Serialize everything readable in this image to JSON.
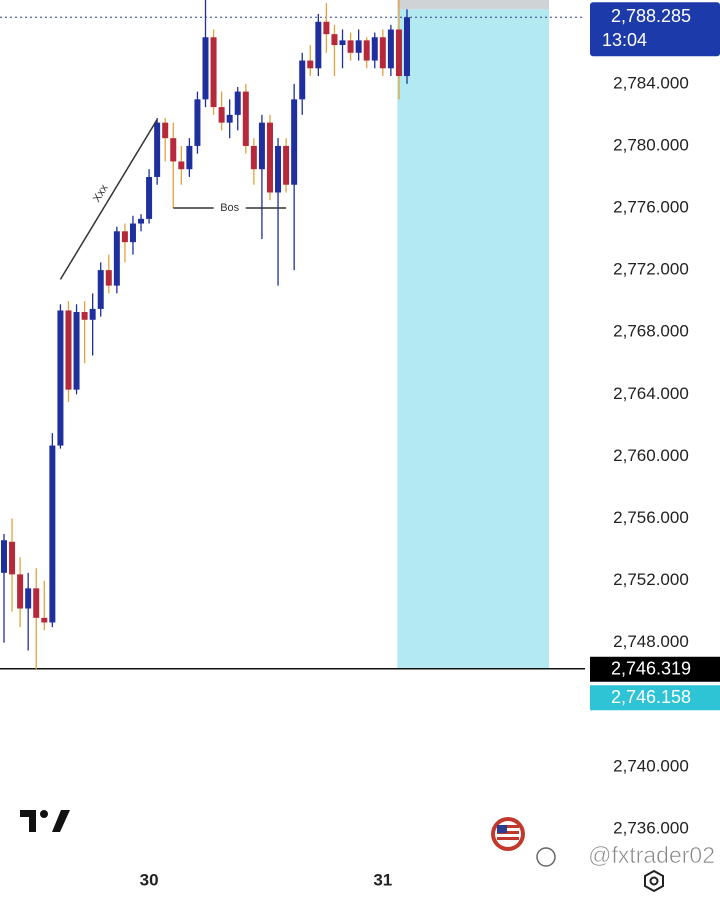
{
  "chart_data": {
    "type": "candlestick",
    "categories": [
      null,
      null,
      null,
      null,
      null,
      null,
      null,
      null,
      null,
      null,
      null,
      null,
      null,
      null,
      null,
      null,
      null,
      null,
      "30",
      null,
      null,
      null,
      null,
      null,
      null,
      null,
      null,
      null,
      null,
      null,
      null,
      null,
      null,
      null,
      null,
      null,
      null,
      null,
      null,
      null,
      null,
      null,
      null,
      null,
      null,
      null,
      null,
      "31",
      null,
      null,
      null
    ],
    "ohlc": [
      [
        2752.5,
        2755.0,
        2748.0,
        2754.6
      ],
      [
        2754.5,
        2756.0,
        2750.0,
        2752.4
      ],
      [
        2752.4,
        2753.5,
        2749.0,
        2750.2
      ],
      [
        2750.2,
        2752.5,
        2747.5,
        2751.5
      ],
      [
        2751.5,
        2752.8,
        2746.3,
        2749.6
      ],
      [
        2749.6,
        2752.0,
        2748.8,
        2749.3
      ],
      [
        2749.3,
        2761.5,
        2749.0,
        2760.7
      ],
      [
        2760.7,
        2769.8,
        2760.5,
        2769.4
      ],
      [
        2769.4,
        2770.0,
        2763.5,
        2764.3
      ],
      [
        2764.3,
        2769.8,
        2764.0,
        2769.3
      ],
      [
        2769.3,
        2770.0,
        2766.0,
        2768.8
      ],
      [
        2768.8,
        2770.5,
        2766.5,
        2769.5
      ],
      [
        2769.5,
        2772.5,
        2769.0,
        2772.0
      ],
      [
        2772.0,
        2773.0,
        2770.5,
        2771.0
      ],
      [
        2771.0,
        2774.8,
        2770.5,
        2774.5
      ],
      [
        2774.5,
        2775.0,
        2772.5,
        2773.8
      ],
      [
        2773.8,
        2775.5,
        2773.0,
        2775.0
      ],
      [
        2775.0,
        2775.6,
        2774.5,
        2775.3
      ],
      [
        2775.3,
        2778.5,
        2775.0,
        2778.0
      ],
      [
        2778.0,
        2781.8,
        2777.5,
        2781.5
      ],
      [
        2781.5,
        2781.8,
        2779.0,
        2780.5
      ],
      [
        2780.5,
        2781.5,
        2776.0,
        2779.0
      ],
      [
        2779.0,
        2780.0,
        2777.5,
        2778.5
      ],
      [
        2778.5,
        2780.5,
        2778.0,
        2780.0
      ],
      [
        2780.0,
        2783.5,
        2779.5,
        2783.0
      ],
      [
        2783.0,
        2789.4,
        2782.5,
        2787.0
      ],
      [
        2787.0,
        2787.5,
        2782.0,
        2782.5
      ],
      [
        2782.5,
        2783.5,
        2781.0,
        2781.5
      ],
      [
        2781.5,
        2783.0,
        2780.5,
        2782.0
      ],
      [
        2782.0,
        2783.8,
        2781.0,
        2783.5
      ],
      [
        2783.5,
        2784.0,
        2779.5,
        2780.0
      ],
      [
        2780.0,
        2780.5,
        2777.5,
        2778.5
      ],
      [
        2778.5,
        2782.0,
        2774.0,
        2781.5
      ],
      [
        2781.5,
        2782.0,
        2776.5,
        2777.0
      ],
      [
        2777.0,
        2780.5,
        2771.0,
        2780.0
      ],
      [
        2780.0,
        2780.5,
        2777.0,
        2777.5
      ],
      [
        2777.5,
        2784.0,
        2772.0,
        2783.0
      ],
      [
        2783.0,
        2786.0,
        2782.0,
        2785.5
      ],
      [
        2785.5,
        2786.5,
        2784.5,
        2785.0
      ],
      [
        2785.0,
        2788.5,
        2784.5,
        2788.0
      ],
      [
        2788.0,
        2789.2,
        2786.0,
        2787.2
      ],
      [
        2787.2,
        2787.8,
        2784.5,
        2786.5
      ],
      [
        2786.5,
        2787.5,
        2785.0,
        2786.8
      ],
      [
        2786.8,
        2787.3,
        2785.5,
        2786.0
      ],
      [
        2786.0,
        2787.5,
        2785.5,
        2786.8
      ],
      [
        2786.8,
        2787.0,
        2785.0,
        2785.5
      ],
      [
        2785.5,
        2787.3,
        2785.0,
        2787.0
      ],
      [
        2787.0,
        2787.5,
        2784.5,
        2785.0
      ],
      [
        2785.0,
        2787.8,
        2784.5,
        2787.5
      ],
      [
        2787.5,
        2789.4,
        2783.0,
        2784.5
      ],
      [
        2784.5,
        2788.8,
        2784.0,
        2788.285
      ]
    ],
    "up_color": "#1f2f9e",
    "down_color": "#b5293a",
    "down_wick_color": "#e3a23c",
    "ylim": [
      2734,
      2789.4
    ],
    "yticks": [
      {
        "value": 2736,
        "label": "2,736.000"
      },
      {
        "value": 2740,
        "label": "2,740.000"
      },
      {
        "value": 2748,
        "label": "2,748.000"
      },
      {
        "value": 2752,
        "label": "2,752.000"
      },
      {
        "value": 2756,
        "label": "2,756.000"
      },
      {
        "value": 2760,
        "label": "2,760.000"
      },
      {
        "value": 2764,
        "label": "2,764.000"
      },
      {
        "value": 2768,
        "label": "2,768.000"
      },
      {
        "value": 2772,
        "label": "2,772.000"
      },
      {
        "value": 2776,
        "label": "2,776.000"
      },
      {
        "value": 2780,
        "label": "2,780.000"
      },
      {
        "value": 2784,
        "label": "2,784.000"
      }
    ],
    "price_labels": [
      {
        "value": 2788.285,
        "label": "2,788.285",
        "sublabel": "13:04",
        "color": "#1c3aa9"
      },
      {
        "value": 2746.319,
        "label": "2,746.319",
        "color": "#000000"
      },
      {
        "value": 2746.158,
        "label": "2,746.158",
        "color": "#2ec4d6"
      }
    ],
    "position": {
      "stop": 2789.4,
      "entry": 2788.8,
      "box_color": "#b3e9f1",
      "stop_color": "#cfd3d6"
    },
    "annotations": [
      {
        "text": "Xxx",
        "x0": 7,
        "y0": 2771.4,
        "x1": 19,
        "y1": 2781.7
      },
      {
        "text": "Bos",
        "x0": 21,
        "x1": 35,
        "y": 2776.0
      }
    ],
    "watermark": "@fxtrader02"
  }
}
